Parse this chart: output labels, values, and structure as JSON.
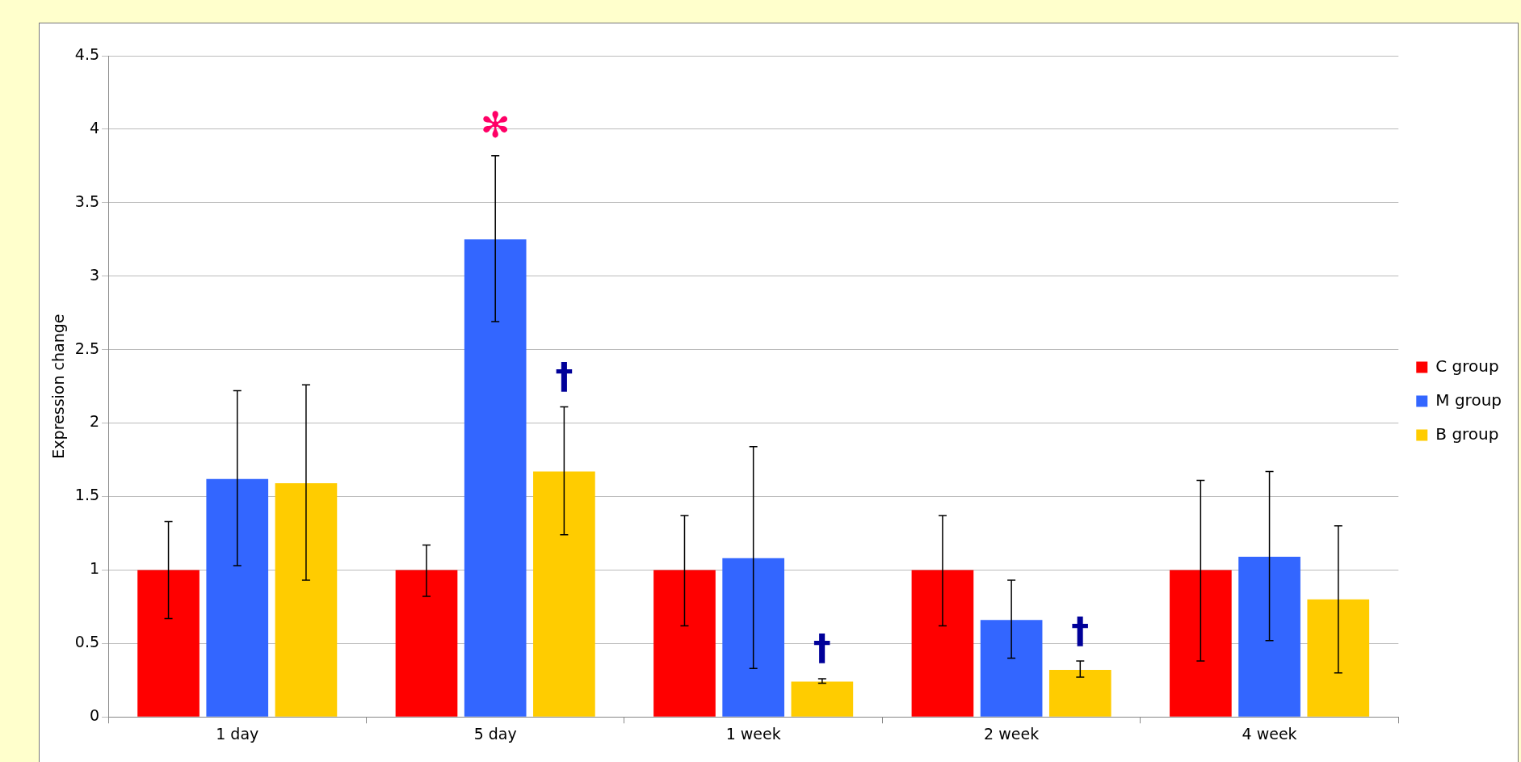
{
  "chart_data": {
    "type": "bar",
    "ylabel": "Expression change",
    "categories": [
      "1 day",
      "5 day",
      "1 week",
      "2 week",
      "4 week"
    ],
    "series": [
      {
        "name": "C group",
        "color": "#ff0000",
        "values": [
          1.0,
          1.0,
          1.0,
          1.0,
          1.0
        ],
        "errors": [
          [
            0.67,
            1.33
          ],
          [
            0.82,
            1.17
          ],
          [
            0.62,
            1.37
          ],
          [
            0.62,
            1.37
          ],
          [
            0.38,
            1.61
          ]
        ]
      },
      {
        "name": "M group",
        "color": "#3366ff",
        "values": [
          1.62,
          3.25,
          1.08,
          0.66,
          1.09
        ],
        "value_labels": [
          null,
          "✻",
          null,
          null,
          null
        ],
        "errors": [
          [
            1.03,
            2.22
          ],
          [
            2.69,
            3.82
          ],
          [
            0.33,
            1.84
          ],
          [
            0.4,
            0.93
          ],
          [
            0.52,
            1.67
          ]
        ]
      },
      {
        "name": "B group",
        "color": "#ffcc00",
        "values": [
          1.59,
          1.67,
          0.24,
          0.32,
          0.8
        ],
        "value_labels": [
          null,
          "†",
          "†",
          "†",
          null
        ],
        "errors": [
          [
            0.93,
            2.26
          ],
          [
            1.24,
            2.11
          ],
          [
            0.23,
            0.26
          ],
          [
            0.27,
            0.38
          ],
          [
            0.3,
            1.3
          ]
        ]
      }
    ],
    "ylim": [
      0,
      4.5
    ],
    "yticks": [
      0,
      0.5,
      1,
      1.5,
      2,
      2.5,
      3,
      3.5,
      4,
      4.5
    ],
    "grid": "y",
    "legend": "right"
  }
}
